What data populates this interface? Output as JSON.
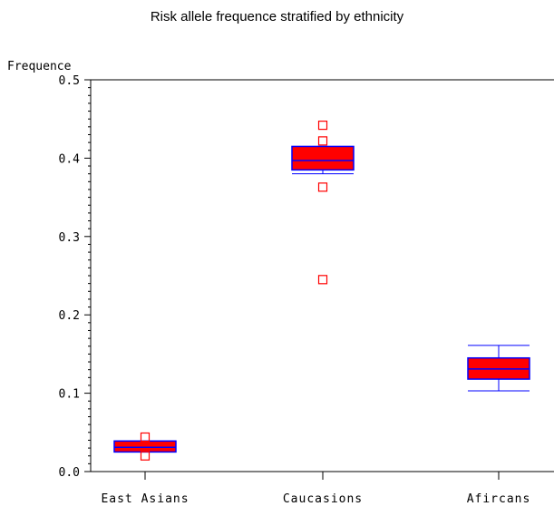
{
  "chart_data": {
    "type": "boxplot",
    "title": "Risk allele frequence stratified by ethnicity",
    "ylabel": "Frequence",
    "xlabel": "",
    "ylim": [
      0.0,
      0.5
    ],
    "yticks": [
      "0.0",
      "0.1",
      "0.2",
      "0.3",
      "0.4",
      "0.5"
    ],
    "categories": [
      "East Asians",
      "Caucasions",
      "Afircans"
    ],
    "boxes": [
      {
        "category": "East Asians",
        "whisker_low": 0.025,
        "q1": 0.025,
        "median": 0.031,
        "q3": 0.039,
        "whisker_high": 0.039,
        "outliers": [
          0.044,
          0.02
        ]
      },
      {
        "category": "Caucasions",
        "whisker_low": 0.38,
        "q1": 0.385,
        "median": 0.397,
        "q3": 0.415,
        "whisker_high": 0.415,
        "outliers": [
          0.442,
          0.422,
          0.363,
          0.245
        ]
      },
      {
        "category": "Afircans",
        "whisker_low": 0.103,
        "q1": 0.118,
        "median": 0.131,
        "q3": 0.145,
        "whisker_high": 0.161,
        "outliers": []
      }
    ],
    "grid": false,
    "colors": {
      "box_fill": "#ff0000",
      "box_edge": "#0000ff",
      "outlier": "#ff0000",
      "axis": "#000000"
    }
  }
}
